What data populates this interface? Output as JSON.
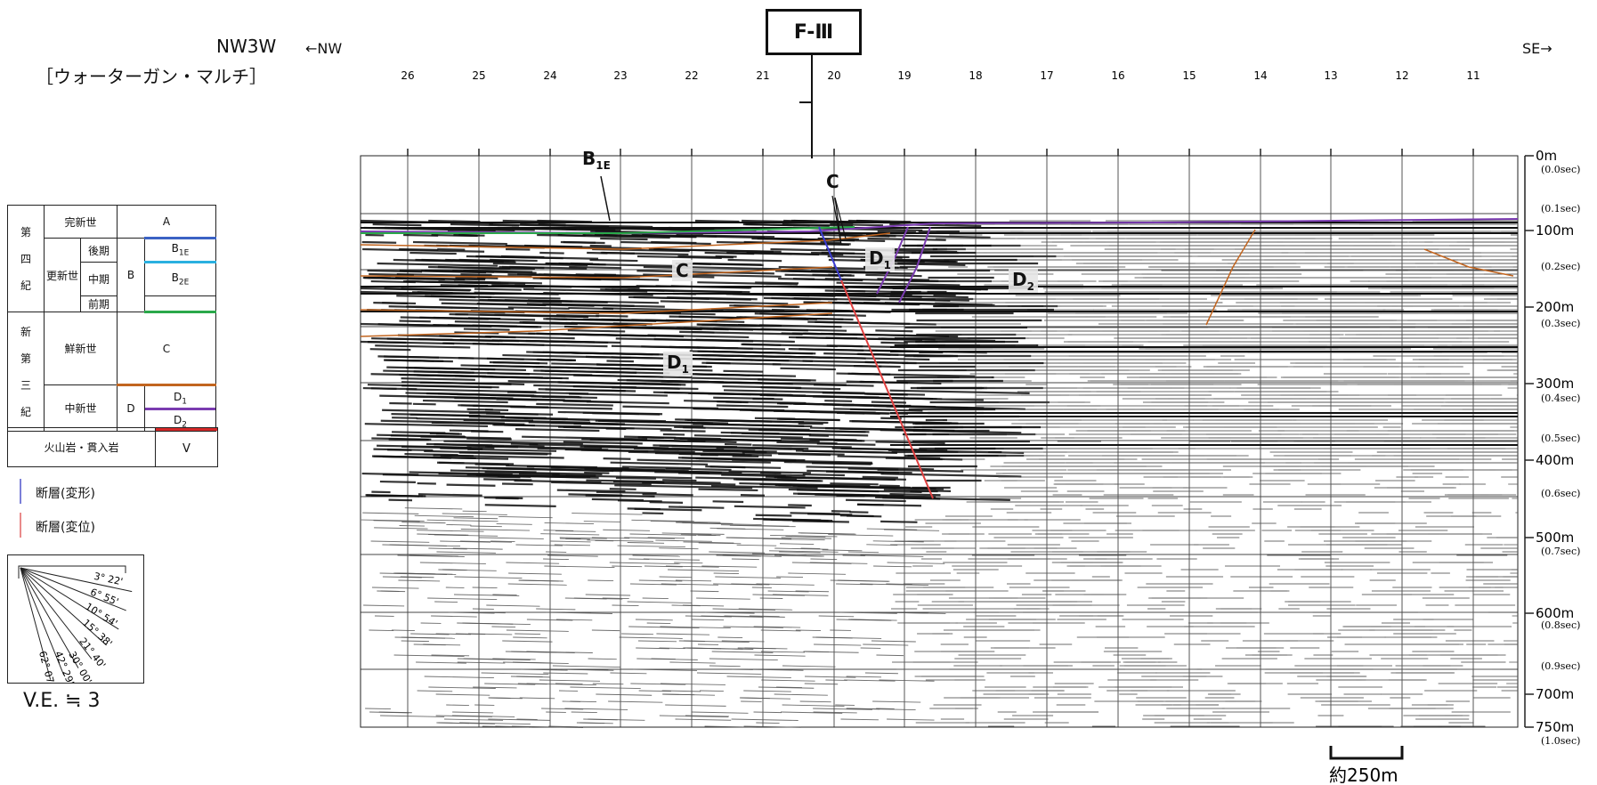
{
  "header": {
    "line_name": "NW3W",
    "source": "［ウォーターガン・マルチ］",
    "left_dir": "←NW",
    "right_dir": "SE→",
    "fault_label": "F-Ⅲ"
  },
  "legend": {
    "period_quaternary": [
      "第",
      "四",
      "紀"
    ],
    "period_neogene": [
      "新",
      "第",
      "三",
      "紀"
    ],
    "holocene": "完新世",
    "pleistocene": "更新世",
    "late": "後期",
    "middle": "中期",
    "early": "前期",
    "pliocene": "鮮新世",
    "miocene": "中新世",
    "unit_A": "A",
    "unit_B": "B",
    "unit_B1E": "B",
    "unit_B1E_sub": "1E",
    "unit_B2E": "B",
    "unit_B2E_sub": "2E",
    "unit_C": "C",
    "unit_D": "D",
    "unit_D1": "D",
    "unit_D1_sub": "1",
    "unit_D2": "D",
    "unit_D2_sub": "2",
    "volcanic": "火山岩・貫入岩",
    "unit_V": "V",
    "fault_deform": "断層(変形)",
    "fault_displace": "断層(変位)",
    "colors": {
      "B1E": "#3b62c4",
      "B2E": "#2ab0e0",
      "Bbase": "#2aa84a",
      "C": "#c2651f",
      "D1D2": "#7a3bb0",
      "V": "#d62828",
      "fault_deform": "#7b7fd8",
      "fault_displace": "#e98a8a"
    }
  },
  "ve": {
    "angles": [
      "3° 22'",
      "6° 55'",
      "10° 54'",
      "15° 38'",
      "21° 40'",
      "30° 00'",
      "42° 29'",
      "62° 07'"
    ],
    "label": "V.E. ≒ 3"
  },
  "section": {
    "traces": [
      "26",
      "25",
      "24",
      "23",
      "22",
      "21",
      "20",
      "19",
      "18",
      "17",
      "16",
      "15",
      "14",
      "13",
      "12",
      "11"
    ],
    "depths": [
      "0m",
      "100m",
      "200m",
      "300m",
      "400m",
      "500m",
      "600m",
      "700m",
      "750m"
    ],
    "times": [
      "(0.0sec)",
      "(0.1sec)",
      "(0.2sec)",
      "(0.3sec)",
      "(0.4sec)",
      "(0.5sec)",
      "(0.6sec)",
      "(0.7sec)",
      "(0.8sec)",
      "(0.9sec)",
      "(1.0sec)"
    ],
    "labels": {
      "B1E": "B",
      "B1E_sub": "1E",
      "C_top": "C",
      "C_left": "C",
      "D1_mid": "D",
      "D1_mid_sub": "1",
      "D2": "D",
      "D2_sub": "2",
      "D1_lower": "D",
      "D1_lower_sub": "1"
    },
    "scale_label": "約250m"
  }
}
